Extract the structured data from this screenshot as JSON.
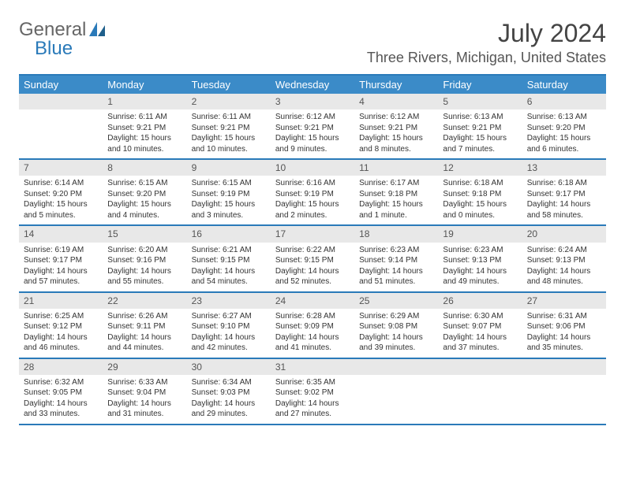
{
  "brand": {
    "part1": "General",
    "part2": "Blue",
    "part1_color": "#666666",
    "part2_color": "#2a7ab9"
  },
  "title": "July 2024",
  "location": "Three Rivers, Michigan, United States",
  "colors": {
    "header_bg": "#3b8bc8",
    "header_text": "#ffffff",
    "border": "#2a7ab9",
    "daynum_bg": "#e8e8e8",
    "body_text": "#333333"
  },
  "day_names": [
    "Sunday",
    "Monday",
    "Tuesday",
    "Wednesday",
    "Thursday",
    "Friday",
    "Saturday"
  ],
  "weeks": [
    [
      {
        "empty": true
      },
      {
        "num": "1",
        "sunrise": "Sunrise: 6:11 AM",
        "sunset": "Sunset: 9:21 PM",
        "daylight": "Daylight: 15 hours and 10 minutes."
      },
      {
        "num": "2",
        "sunrise": "Sunrise: 6:11 AM",
        "sunset": "Sunset: 9:21 PM",
        "daylight": "Daylight: 15 hours and 10 minutes."
      },
      {
        "num": "3",
        "sunrise": "Sunrise: 6:12 AM",
        "sunset": "Sunset: 9:21 PM",
        "daylight": "Daylight: 15 hours and 9 minutes."
      },
      {
        "num": "4",
        "sunrise": "Sunrise: 6:12 AM",
        "sunset": "Sunset: 9:21 PM",
        "daylight": "Daylight: 15 hours and 8 minutes."
      },
      {
        "num": "5",
        "sunrise": "Sunrise: 6:13 AM",
        "sunset": "Sunset: 9:21 PM",
        "daylight": "Daylight: 15 hours and 7 minutes."
      },
      {
        "num": "6",
        "sunrise": "Sunrise: 6:13 AM",
        "sunset": "Sunset: 9:20 PM",
        "daylight": "Daylight: 15 hours and 6 minutes."
      }
    ],
    [
      {
        "num": "7",
        "sunrise": "Sunrise: 6:14 AM",
        "sunset": "Sunset: 9:20 PM",
        "daylight": "Daylight: 15 hours and 5 minutes."
      },
      {
        "num": "8",
        "sunrise": "Sunrise: 6:15 AM",
        "sunset": "Sunset: 9:20 PM",
        "daylight": "Daylight: 15 hours and 4 minutes."
      },
      {
        "num": "9",
        "sunrise": "Sunrise: 6:15 AM",
        "sunset": "Sunset: 9:19 PM",
        "daylight": "Daylight: 15 hours and 3 minutes."
      },
      {
        "num": "10",
        "sunrise": "Sunrise: 6:16 AM",
        "sunset": "Sunset: 9:19 PM",
        "daylight": "Daylight: 15 hours and 2 minutes."
      },
      {
        "num": "11",
        "sunrise": "Sunrise: 6:17 AM",
        "sunset": "Sunset: 9:18 PM",
        "daylight": "Daylight: 15 hours and 1 minute."
      },
      {
        "num": "12",
        "sunrise": "Sunrise: 6:18 AM",
        "sunset": "Sunset: 9:18 PM",
        "daylight": "Daylight: 15 hours and 0 minutes."
      },
      {
        "num": "13",
        "sunrise": "Sunrise: 6:18 AM",
        "sunset": "Sunset: 9:17 PM",
        "daylight": "Daylight: 14 hours and 58 minutes."
      }
    ],
    [
      {
        "num": "14",
        "sunrise": "Sunrise: 6:19 AM",
        "sunset": "Sunset: 9:17 PM",
        "daylight": "Daylight: 14 hours and 57 minutes."
      },
      {
        "num": "15",
        "sunrise": "Sunrise: 6:20 AM",
        "sunset": "Sunset: 9:16 PM",
        "daylight": "Daylight: 14 hours and 55 minutes."
      },
      {
        "num": "16",
        "sunrise": "Sunrise: 6:21 AM",
        "sunset": "Sunset: 9:15 PM",
        "daylight": "Daylight: 14 hours and 54 minutes."
      },
      {
        "num": "17",
        "sunrise": "Sunrise: 6:22 AM",
        "sunset": "Sunset: 9:15 PM",
        "daylight": "Daylight: 14 hours and 52 minutes."
      },
      {
        "num": "18",
        "sunrise": "Sunrise: 6:23 AM",
        "sunset": "Sunset: 9:14 PM",
        "daylight": "Daylight: 14 hours and 51 minutes."
      },
      {
        "num": "19",
        "sunrise": "Sunrise: 6:23 AM",
        "sunset": "Sunset: 9:13 PM",
        "daylight": "Daylight: 14 hours and 49 minutes."
      },
      {
        "num": "20",
        "sunrise": "Sunrise: 6:24 AM",
        "sunset": "Sunset: 9:13 PM",
        "daylight": "Daylight: 14 hours and 48 minutes."
      }
    ],
    [
      {
        "num": "21",
        "sunrise": "Sunrise: 6:25 AM",
        "sunset": "Sunset: 9:12 PM",
        "daylight": "Daylight: 14 hours and 46 minutes."
      },
      {
        "num": "22",
        "sunrise": "Sunrise: 6:26 AM",
        "sunset": "Sunset: 9:11 PM",
        "daylight": "Daylight: 14 hours and 44 minutes."
      },
      {
        "num": "23",
        "sunrise": "Sunrise: 6:27 AM",
        "sunset": "Sunset: 9:10 PM",
        "daylight": "Daylight: 14 hours and 42 minutes."
      },
      {
        "num": "24",
        "sunrise": "Sunrise: 6:28 AM",
        "sunset": "Sunset: 9:09 PM",
        "daylight": "Daylight: 14 hours and 41 minutes."
      },
      {
        "num": "25",
        "sunrise": "Sunrise: 6:29 AM",
        "sunset": "Sunset: 9:08 PM",
        "daylight": "Daylight: 14 hours and 39 minutes."
      },
      {
        "num": "26",
        "sunrise": "Sunrise: 6:30 AM",
        "sunset": "Sunset: 9:07 PM",
        "daylight": "Daylight: 14 hours and 37 minutes."
      },
      {
        "num": "27",
        "sunrise": "Sunrise: 6:31 AM",
        "sunset": "Sunset: 9:06 PM",
        "daylight": "Daylight: 14 hours and 35 minutes."
      }
    ],
    [
      {
        "num": "28",
        "sunrise": "Sunrise: 6:32 AM",
        "sunset": "Sunset: 9:05 PM",
        "daylight": "Daylight: 14 hours and 33 minutes."
      },
      {
        "num": "29",
        "sunrise": "Sunrise: 6:33 AM",
        "sunset": "Sunset: 9:04 PM",
        "daylight": "Daylight: 14 hours and 31 minutes."
      },
      {
        "num": "30",
        "sunrise": "Sunrise: 6:34 AM",
        "sunset": "Sunset: 9:03 PM",
        "daylight": "Daylight: 14 hours and 29 minutes."
      },
      {
        "num": "31",
        "sunrise": "Sunrise: 6:35 AM",
        "sunset": "Sunset: 9:02 PM",
        "daylight": "Daylight: 14 hours and 27 minutes."
      },
      {
        "empty": true
      },
      {
        "empty": true
      },
      {
        "empty": true
      }
    ]
  ]
}
